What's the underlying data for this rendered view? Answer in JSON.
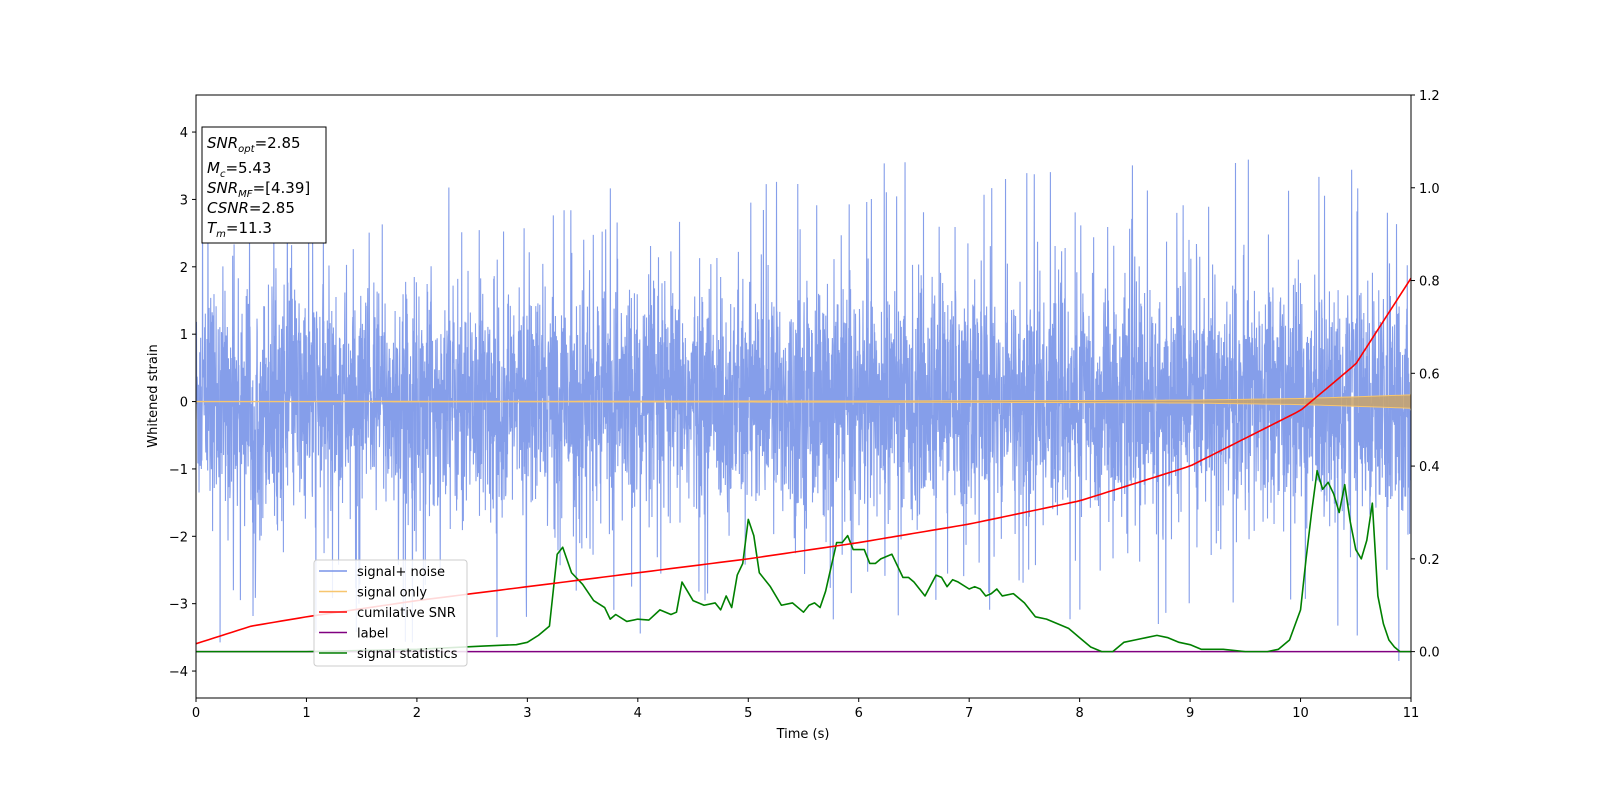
{
  "chart_data": {
    "type": "line",
    "title": "",
    "xlabel": "Time (s)",
    "ylabel": "Whitened strain",
    "xlim": [
      0,
      11
    ],
    "ylim": [
      -4.4,
      4.55
    ],
    "y2lim": [
      -0.1,
      1.2
    ],
    "x_ticks": [
      0,
      1,
      2,
      3,
      4,
      5,
      6,
      7,
      8,
      9,
      10,
      11
    ],
    "y_ticks": [
      -4,
      -3,
      -2,
      -1,
      0,
      1,
      2,
      3,
      4
    ],
    "y2_ticks": [
      "0.0",
      "0.2",
      "0.4",
      "0.6",
      "0.8",
      "1.0",
      "1.2"
    ],
    "annotation": {
      "lines": [
        {
          "sym": "SNR",
          "sub": "opt",
          "rest": "=2.85"
        },
        {
          "sym": "M",
          "sub": "c",
          "rest": "=5.43"
        },
        {
          "sym": "SNR",
          "sub": "MF",
          "rest": "=[4.39]"
        },
        {
          "sym": "CSNR",
          "sub": "",
          "rest": "=2.85"
        },
        {
          "sym": "T",
          "sub": "m",
          "rest": "=11.3"
        }
      ]
    },
    "legend": {
      "placement": "lower-left",
      "entries": [
        {
          "label": "signal+ noise",
          "color": "#7894e8"
        },
        {
          "label": "signal only",
          "color": "#f7c66f"
        },
        {
          "label": "cumilative SNR",
          "color": "#ff0000"
        },
        {
          "label": "label",
          "color": "#800080"
        },
        {
          "label": "signal statistics",
          "color": "#008000"
        }
      ]
    },
    "series": [
      {
        "name": "signal+ noise",
        "axis": "left",
        "color": "#7894e8",
        "kind": "white-noise",
        "description_values": {
          "typical_amplitude": [
            -1.5,
            1.5
          ],
          "spikes_max": 3.8,
          "spikes_min": -3.85
        }
      },
      {
        "name": "signal only",
        "axis": "left",
        "color": "#f7c66f",
        "kind": "chirp-envelope",
        "x": [
          0,
          2,
          4,
          6,
          8,
          9,
          10,
          10.5,
          11
        ],
        "amplitude": [
          0.003,
          0.004,
          0.006,
          0.009,
          0.015,
          0.022,
          0.045,
          0.07,
          0.1
        ]
      },
      {
        "name": "cumilative SNR",
        "axis": "right",
        "color": "#ff0000",
        "x": [
          0,
          0.5,
          1,
          2,
          3,
          4,
          5,
          6,
          7,
          8,
          9,
          10,
          10.5,
          11
        ],
        "values": [
          0.017,
          0.055,
          0.075,
          0.11,
          0.14,
          0.17,
          0.2,
          0.235,
          0.275,
          0.325,
          0.4,
          0.52,
          0.62,
          0.805
        ]
      },
      {
        "name": "label",
        "axis": "right",
        "color": "#800080",
        "x": [
          0,
          11
        ],
        "values": [
          0,
          0
        ]
      },
      {
        "name": "signal statistics",
        "axis": "right",
        "color": "#008000",
        "x": [
          0,
          1,
          2,
          2.6,
          2.9,
          3.0,
          3.1,
          3.2,
          3.27,
          3.32,
          3.4,
          3.5,
          3.6,
          3.7,
          3.75,
          3.8,
          3.9,
          4.0,
          4.1,
          4.2,
          4.3,
          4.35,
          4.4,
          4.5,
          4.6,
          4.7,
          4.75,
          4.8,
          4.85,
          4.9,
          4.95,
          5.0,
          5.05,
          5.1,
          5.2,
          5.3,
          5.4,
          5.5,
          5.55,
          5.6,
          5.65,
          5.7,
          5.8,
          5.85,
          5.9,
          5.95,
          6.0,
          6.05,
          6.1,
          6.15,
          6.2,
          6.3,
          6.4,
          6.45,
          6.5,
          6.6,
          6.7,
          6.75,
          6.8,
          6.85,
          6.9,
          7.0,
          7.05,
          7.1,
          7.15,
          7.2,
          7.25,
          7.3,
          7.4,
          7.5,
          7.6,
          7.7,
          7.8,
          7.9,
          8.0,
          8.1,
          8.2,
          8.3,
          8.4,
          8.5,
          8.6,
          8.7,
          8.8,
          8.9,
          9.0,
          9.1,
          9.2,
          9.3,
          9.5,
          9.7,
          9.8,
          9.9,
          10.0,
          10.05,
          10.1,
          10.15,
          10.2,
          10.25,
          10.3,
          10.35,
          10.4,
          10.45,
          10.5,
          10.55,
          10.6,
          10.65,
          10.7,
          10.75,
          10.8,
          10.85,
          10.9,
          11.0
        ],
        "values": [
          0.0,
          0.0,
          0.005,
          0.012,
          0.015,
          0.02,
          0.035,
          0.055,
          0.21,
          0.225,
          0.17,
          0.145,
          0.11,
          0.095,
          0.07,
          0.08,
          0.065,
          0.07,
          0.068,
          0.09,
          0.08,
          0.085,
          0.15,
          0.11,
          0.1,
          0.105,
          0.09,
          0.12,
          0.095,
          0.165,
          0.19,
          0.285,
          0.25,
          0.17,
          0.14,
          0.1,
          0.105,
          0.085,
          0.1,
          0.105,
          0.095,
          0.13,
          0.235,
          0.235,
          0.25,
          0.22,
          0.22,
          0.22,
          0.19,
          0.19,
          0.2,
          0.21,
          0.16,
          0.16,
          0.15,
          0.12,
          0.165,
          0.16,
          0.14,
          0.155,
          0.15,
          0.135,
          0.14,
          0.135,
          0.12,
          0.125,
          0.135,
          0.12,
          0.125,
          0.105,
          0.075,
          0.07,
          0.06,
          0.05,
          0.03,
          0.01,
          0.0,
          0.0,
          0.02,
          0.025,
          0.03,
          0.035,
          0.03,
          0.02,
          0.015,
          0.005,
          0.005,
          0.005,
          0.0,
          0.0,
          0.005,
          0.025,
          0.09,
          0.2,
          0.3,
          0.39,
          0.35,
          0.365,
          0.34,
          0.3,
          0.36,
          0.28,
          0.22,
          0.2,
          0.24,
          0.32,
          0.12,
          0.06,
          0.025,
          0.01,
          0.0,
          0.0
        ]
      }
    ]
  }
}
